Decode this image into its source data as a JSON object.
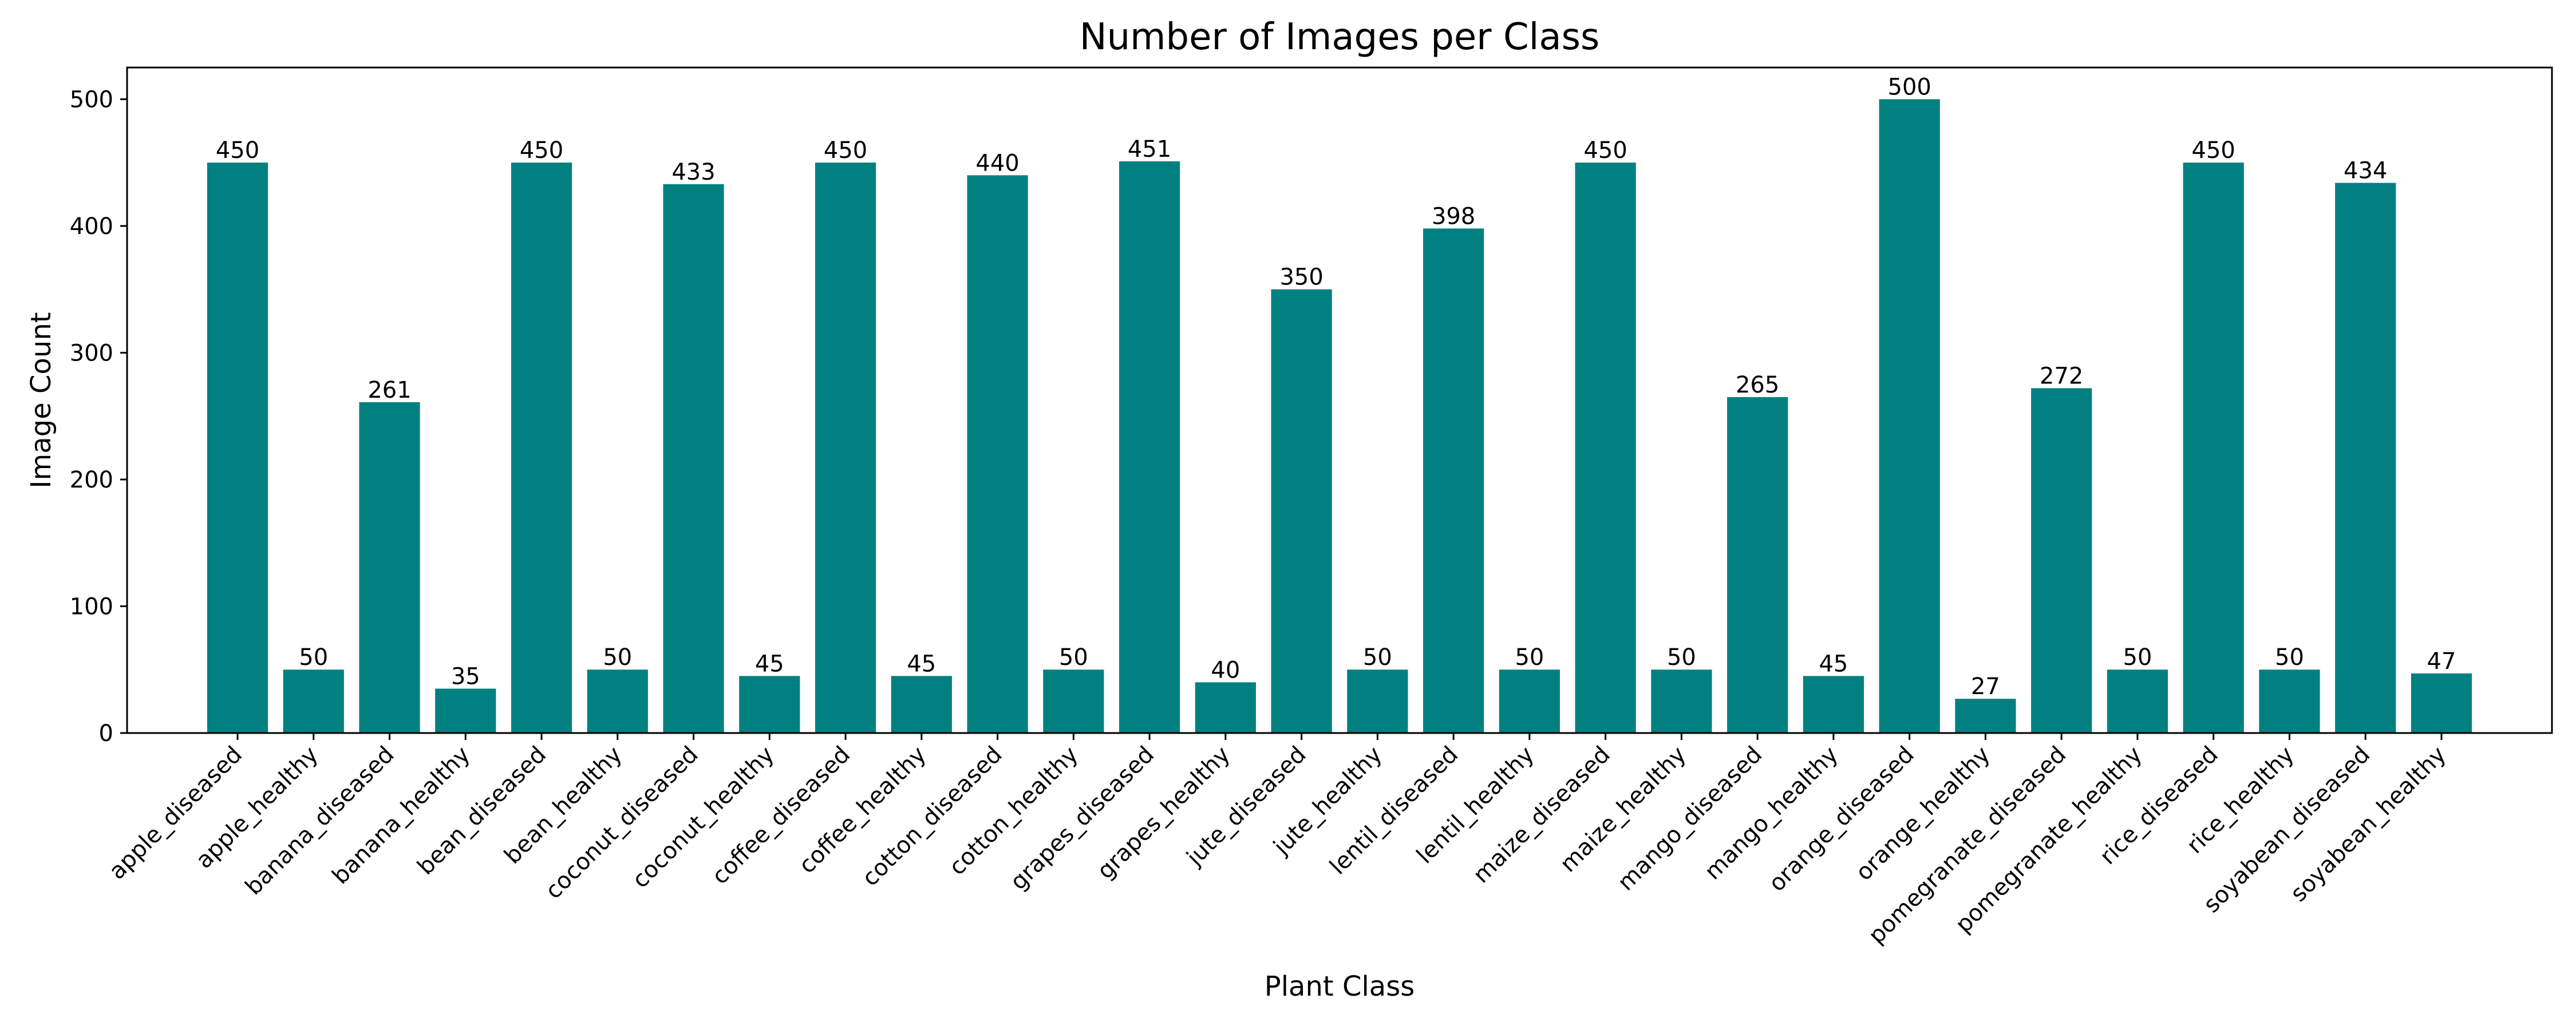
{
  "chart_data": {
    "type": "bar",
    "title": "Number of Images per Class",
    "xlabel": "Plant Class",
    "ylabel": "Image Count",
    "ylim": [
      0,
      525
    ],
    "yticks": [
      0,
      100,
      200,
      300,
      400,
      500
    ],
    "bar_color": "#008080",
    "categories": [
      "apple_diseased",
      "apple_healthy",
      "banana_diseased",
      "banana_healthy",
      "bean_diseased",
      "bean_healthy",
      "coconut_diseased",
      "coconut_healthy",
      "coffee_diseased",
      "coffee_healthy",
      "cotton_diseased",
      "cotton_healthy",
      "grapes_diseased",
      "grapes_healthy",
      "jute_diseased",
      "jute_healthy",
      "lentil_diseased",
      "lentil_healthy",
      "maize_diseased",
      "maize_healthy",
      "mango_diseased",
      "mango_healthy",
      "orange_diseased",
      "orange_healthy",
      "pomegranate_diseased",
      "pomegranate_healthy",
      "rice_diseased",
      "rice_healthy",
      "soyabean_diseased",
      "soyabean_healthy"
    ],
    "values": [
      450,
      50,
      261,
      35,
      450,
      50,
      433,
      45,
      450,
      45,
      440,
      50,
      451,
      40,
      350,
      50,
      398,
      50,
      450,
      50,
      265,
      45,
      500,
      27,
      272,
      50,
      450,
      50,
      434,
      47
    ]
  }
}
